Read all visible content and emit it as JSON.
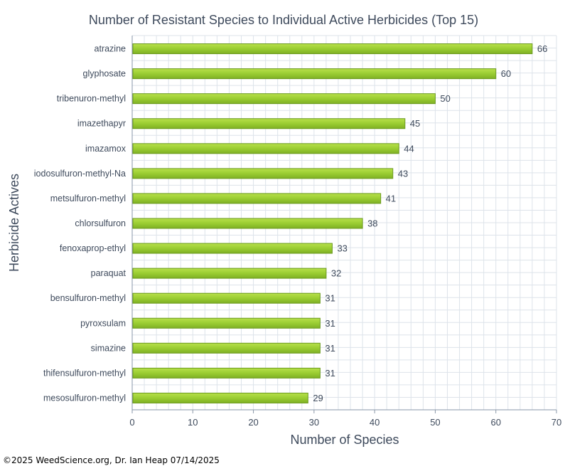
{
  "chart_data": {
    "type": "bar",
    "orientation": "horizontal",
    "title": "Number of Resistant Species to Individual Active Herbicides (Top 15)",
    "xlabel": "Number of Species",
    "ylabel": "Herbicide Actives",
    "xlim": [
      0,
      70
    ],
    "x_ticks": [
      "0",
      "10",
      "20",
      "30",
      "40",
      "50",
      "60",
      "70"
    ],
    "grid": true,
    "legend": "none",
    "categories": [
      "atrazine",
      "glyphosate",
      "tribenuron-methyl",
      "imazethapyr",
      "imazamox",
      "iodosulfuron-methyl-Na",
      "metsulfuron-methyl",
      "chlorsulfuron",
      "fenoxaprop-ethyl",
      "paraquat",
      "bensulfuron-methyl",
      "pyroxsulam",
      "simazine",
      "thifensulfuron-methyl",
      "mesosulfuron-methyl"
    ],
    "values": [
      66,
      60,
      50,
      45,
      44,
      43,
      41,
      38,
      33,
      32,
      31,
      31,
      31,
      31,
      29
    ],
    "data_labels": [
      "66",
      "60",
      "50",
      "45",
      "44",
      "43",
      "41",
      "38",
      "33",
      "32",
      "31",
      "31",
      "31",
      "31",
      "29"
    ],
    "colors": {
      "bar_fill": "#9acd32",
      "bar_stroke": "#6b9a1f",
      "text": "#3e4a5c",
      "grid": "#dde3ea"
    }
  },
  "footer": "©2025 WeedScience.org, Dr. Ian Heap 07/14/2025"
}
